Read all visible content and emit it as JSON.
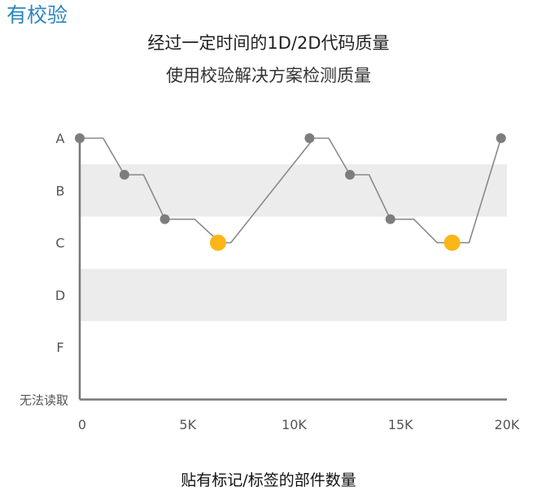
{
  "heading": "有校验",
  "chart_data": {
    "type": "line",
    "title": "经过一定时间的1D/2D代码质量",
    "subtitle": "使用校验解决方案检测质量",
    "xlabel": "贴有标记/标签的部件数量",
    "ylabel": "",
    "x_ticks": [
      "0",
      "5K",
      "10K",
      "15K",
      "20K"
    ],
    "xlim": [
      0,
      20000
    ],
    "y_categories": [
      "A",
      "B",
      "C",
      "D",
      "F",
      "无法读取"
    ],
    "shaded_bands": [
      "B",
      "D"
    ],
    "grid": false,
    "colors": {
      "line": "#8a8a8a",
      "marker": "#7d7d7d",
      "highlight": "#fbb617",
      "band": "#ececec",
      "axis": "#777777"
    },
    "series": [
      {
        "x": [
          0,
          1100,
          2100,
          3000,
          4000,
          5400,
          6600,
          7100,
          11000,
          11700,
          12700,
          13600,
          14600,
          15700,
          16800,
          17500,
          18300,
          19800
        ],
        "y": [
          "A",
          "A",
          "B-",
          "B-",
          "C+",
          "C+",
          "C",
          "C",
          "A",
          "A",
          "B-",
          "B-",
          "C+",
          "C+",
          "C",
          "C",
          "C",
          "A"
        ],
        "y_numeric": [
          5,
          5,
          4.3,
          4.3,
          3.45,
          3.45,
          3,
          3,
          5,
          5,
          4.3,
          4.3,
          3.45,
          3.45,
          3,
          3,
          3,
          5
        ]
      }
    ],
    "markers": [
      {
        "x": 0,
        "y": 5,
        "kind": "normal"
      },
      {
        "x": 2100,
        "y": 4.3,
        "kind": "normal"
      },
      {
        "x": 4000,
        "y": 3.45,
        "kind": "normal"
      },
      {
        "x": 6500,
        "y": 3,
        "kind": "highlight"
      },
      {
        "x": 10800,
        "y": 5,
        "kind": "normal"
      },
      {
        "x": 12700,
        "y": 4.3,
        "kind": "normal"
      },
      {
        "x": 14600,
        "y": 3.45,
        "kind": "normal"
      },
      {
        "x": 17500,
        "y": 3,
        "kind": "highlight"
      },
      {
        "x": 19800,
        "y": 5,
        "kind": "normal"
      }
    ]
  }
}
